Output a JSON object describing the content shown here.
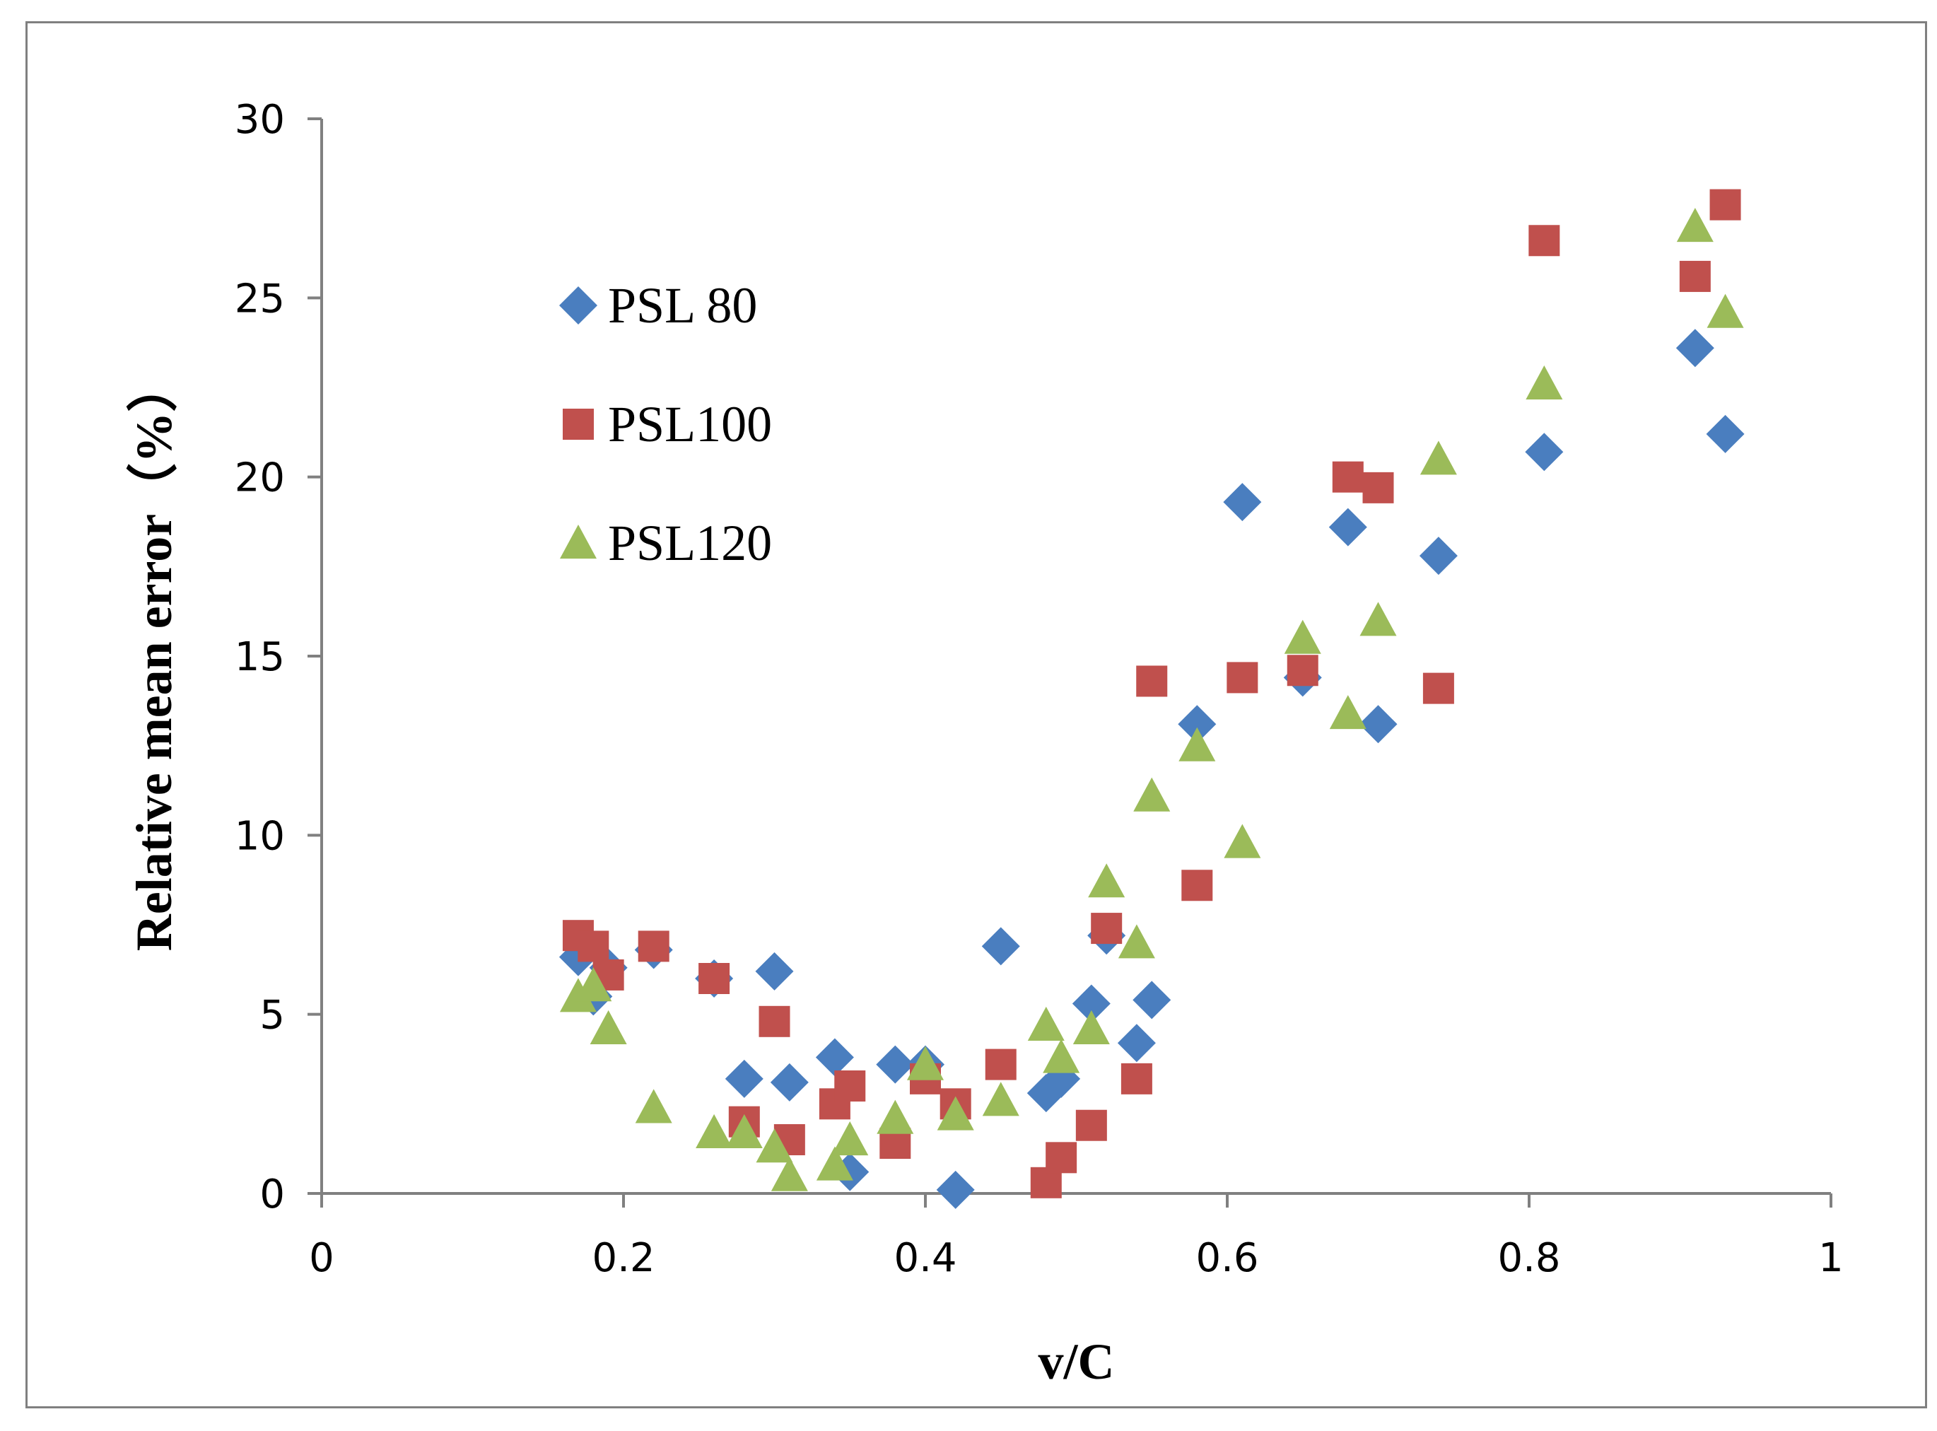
{
  "chart_data": {
    "type": "scatter",
    "title": "",
    "xlabel": "v/C",
    "ylabel": "Relative mean error（%）",
    "xlim": [
      0,
      1
    ],
    "ylim": [
      0,
      30
    ],
    "xticks": [
      0,
      0.2,
      0.4,
      0.6,
      0.8,
      1
    ],
    "xtick_labels": [
      "0",
      "0.2",
      "0.4",
      "0.6",
      "0.8",
      "1"
    ],
    "yticks": [
      0,
      5,
      10,
      15,
      20,
      25,
      30
    ],
    "ytick_labels": [
      "0",
      "5",
      "10",
      "15",
      "20",
      "25",
      "30"
    ],
    "grid": false,
    "legend_position": "upper-left inside plot",
    "series": [
      {
        "name": "PSL 80",
        "marker": "diamond",
        "color": "#4a7ebf",
        "x": [
          0.17,
          0.18,
          0.19,
          0.22,
          0.26,
          0.28,
          0.3,
          0.31,
          0.34,
          0.35,
          0.38,
          0.4,
          0.42,
          0.45,
          0.48,
          0.49,
          0.51,
          0.52,
          0.54,
          0.55,
          0.58,
          0.61,
          0.65,
          0.68,
          0.7,
          0.74,
          0.81,
          0.91,
          0.93
        ],
        "y": [
          6.6,
          5.5,
          6.3,
          6.8,
          6.0,
          3.2,
          6.2,
          3.1,
          3.8,
          0.6,
          3.6,
          3.6,
          0.1,
          6.9,
          2.8,
          3.2,
          5.3,
          7.2,
          4.2,
          5.4,
          13.1,
          19.3,
          14.4,
          18.6,
          13.1,
          17.8,
          20.7,
          23.6,
          21.2
        ]
      },
      {
        "name": "PSL100",
        "marker": "square",
        "color": "#c0504d",
        "x": [
          0.17,
          0.18,
          0.19,
          0.22,
          0.26,
          0.28,
          0.3,
          0.31,
          0.34,
          0.35,
          0.38,
          0.4,
          0.42,
          0.45,
          0.48,
          0.49,
          0.51,
          0.52,
          0.54,
          0.55,
          0.58,
          0.61,
          0.65,
          0.68,
          0.7,
          0.74,
          0.81,
          0.91,
          0.93
        ],
        "y": [
          7.2,
          6.9,
          6.1,
          6.9,
          6.0,
          2.0,
          4.8,
          1.5,
          2.5,
          3.0,
          1.4,
          3.2,
          2.5,
          3.6,
          0.3,
          1.0,
          1.9,
          7.4,
          3.2,
          14.3,
          8.6,
          14.4,
          14.6,
          20.0,
          19.7,
          14.1,
          26.6,
          25.6,
          27.6
        ]
      },
      {
        "name": "PSL120",
        "marker": "triangle",
        "color": "#9bbb59",
        "x": [
          0.17,
          0.18,
          0.19,
          0.22,
          0.26,
          0.28,
          0.3,
          0.31,
          0.34,
          0.35,
          0.38,
          0.4,
          0.42,
          0.45,
          0.48,
          0.49,
          0.51,
          0.52,
          0.54,
          0.55,
          0.58,
          0.61,
          0.65,
          0.68,
          0.7,
          0.74,
          0.81,
          0.91,
          0.93
        ],
        "y": [
          5.5,
          5.8,
          4.6,
          2.4,
          1.7,
          1.7,
          1.3,
          0.5,
          0.8,
          1.5,
          2.1,
          3.6,
          2.2,
          2.6,
          4.7,
          3.8,
          4.6,
          8.7,
          7.0,
          11.1,
          12.5,
          9.8,
          15.5,
          13.4,
          16.0,
          20.5,
          22.6,
          27.0,
          24.6
        ]
      }
    ]
  }
}
